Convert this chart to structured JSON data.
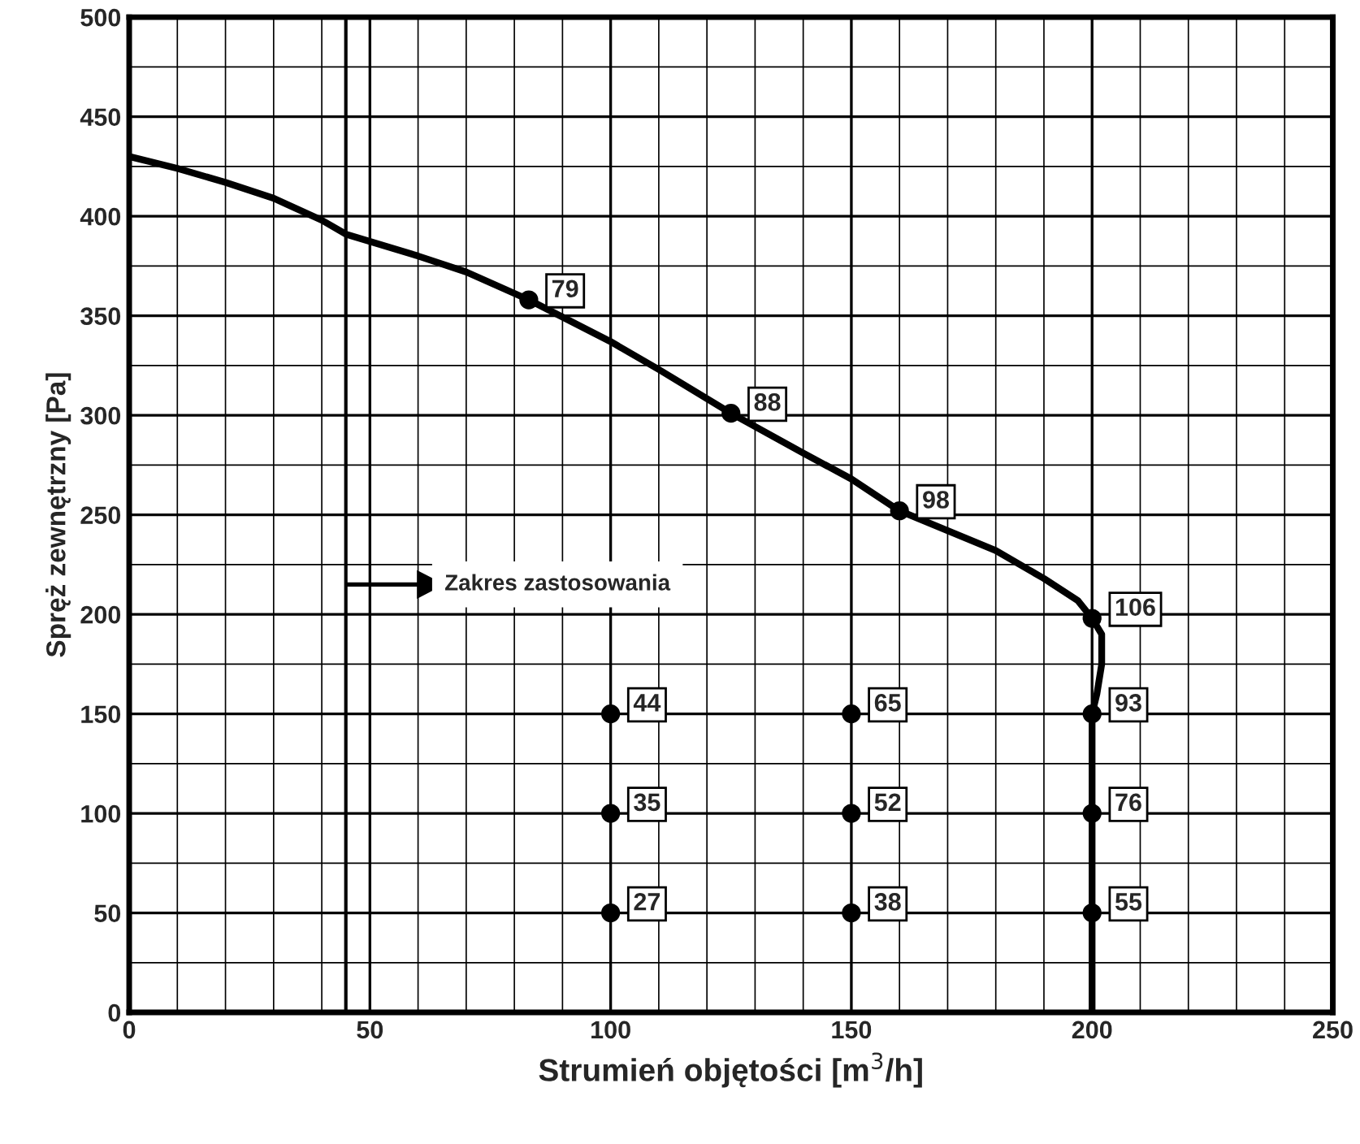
{
  "chart_data": {
    "type": "line",
    "xlabel": "Strumień objętości [m$^{3}$/h]",
    "ylabel": "Spręż zewnętrzny [Pa]",
    "xlim": [
      0,
      250
    ],
    "ylim": [
      0,
      500
    ],
    "xticks": [
      0,
      {
        "value": 10,
        "label": null
      },
      {
        "value": 20,
        "label": null
      },
      {
        "value": 30,
        "label": null
      },
      {
        "value": 40,
        "label": null
      },
      50,
      {
        "value": 60,
        "label": null
      },
      {
        "value": 70,
        "label": null
      },
      {
        "value": 80,
        "label": null
      },
      {
        "value": 90,
        "label": null
      },
      100,
      {
        "value": 110,
        "label": null
      },
      {
        "value": 120,
        "label": null
      },
      {
        "value": 130,
        "label": null
      },
      {
        "value": 140,
        "label": null
      },
      150,
      {
        "value": 160,
        "label": null
      },
      {
        "value": 170,
        "label": null
      },
      {
        "value": 180,
        "label": null
      },
      {
        "value": 190,
        "label": null
      },
      200,
      {
        "value": 210,
        "label": null
      },
      {
        "value": 220,
        "label": null
      },
      {
        "value": 230,
        "label": null
      },
      {
        "value": 240,
        "label": null
      },
      250
    ],
    "yticks": [
      0,
      {
        "value": 25,
        "label": null
      },
      50,
      {
        "value": 75,
        "label": null
      },
      100,
      {
        "value": 125,
        "label": null
      },
      150,
      {
        "value": 175,
        "label": null
      },
      200,
      {
        "value": 225,
        "label": null
      },
      250,
      {
        "value": 275,
        "label": null
      },
      300,
      {
        "value": 325,
        "label": null
      },
      350,
      {
        "value": 375,
        "label": null
      },
      400,
      {
        "value": 425,
        "label": null
      },
      450,
      {
        "value": 475,
        "label": null
      },
      500
    ],
    "grid": true,
    "series": [
      {
        "type": "line",
        "color": "#000000",
        "marker": "none",
        "line_style": "solid",
        "x": [
          0,
          10,
          20,
          30,
          40,
          45,
          60,
          70,
          83,
          100,
          110,
          125,
          140,
          150,
          160,
          170,
          180,
          190,
          197,
          200,
          202,
          202,
          201,
          200,
          200,
          200,
          200
        ],
        "values": [
          430,
          424,
          417,
          409,
          398,
          391,
          380,
          372,
          358,
          337,
          323,
          301,
          281,
          268,
          252,
          242,
          232,
          218,
          207,
          198,
          190,
          175,
          160,
          150,
          100,
          50,
          0
        ]
      },
      {
        "type": "scatter",
        "color": "#000000",
        "marker": "circle",
        "x": [
          83,
          125,
          160,
          200,
          100,
          150,
          200,
          100,
          150,
          200,
          100,
          150,
          200
        ],
        "values": [
          358,
          301,
          252,
          198,
          150,
          150,
          150,
          100,
          100,
          100,
          50,
          50,
          50
        ]
      }
    ],
    "ref_lines": [
      {
        "axis": "x",
        "value": 45,
        "color": "#000000",
        "line_style": "solid"
      }
    ],
    "annotations": [
      "Zakres zastosowania",
      {
        "text": "79",
        "x": 83,
        "y": 358
      },
      {
        "text": "88",
        "x": 125,
        "y": 301
      },
      {
        "text": "98",
        "x": 160,
        "y": 252
      },
      {
        "text": "106",
        "x": 200,
        "y": 198
      },
      {
        "text": "44",
        "x": 100,
        "y": 150
      },
      {
        "text": "65",
        "x": 150,
        "y": 150
      },
      {
        "text": "93",
        "x": 200,
        "y": 150
      },
      {
        "text": "35",
        "x": 100,
        "y": 100
      },
      {
        "text": "52",
        "x": 150,
        "y": 100
      },
      {
        "text": "76",
        "x": 200,
        "y": 100
      },
      {
        "text": "27",
        "x": 100,
        "y": 50
      },
      {
        "text": "38",
        "x": 150,
        "y": 50
      },
      {
        "text": "55",
        "x": 200,
        "y": 50
      }
    ]
  }
}
